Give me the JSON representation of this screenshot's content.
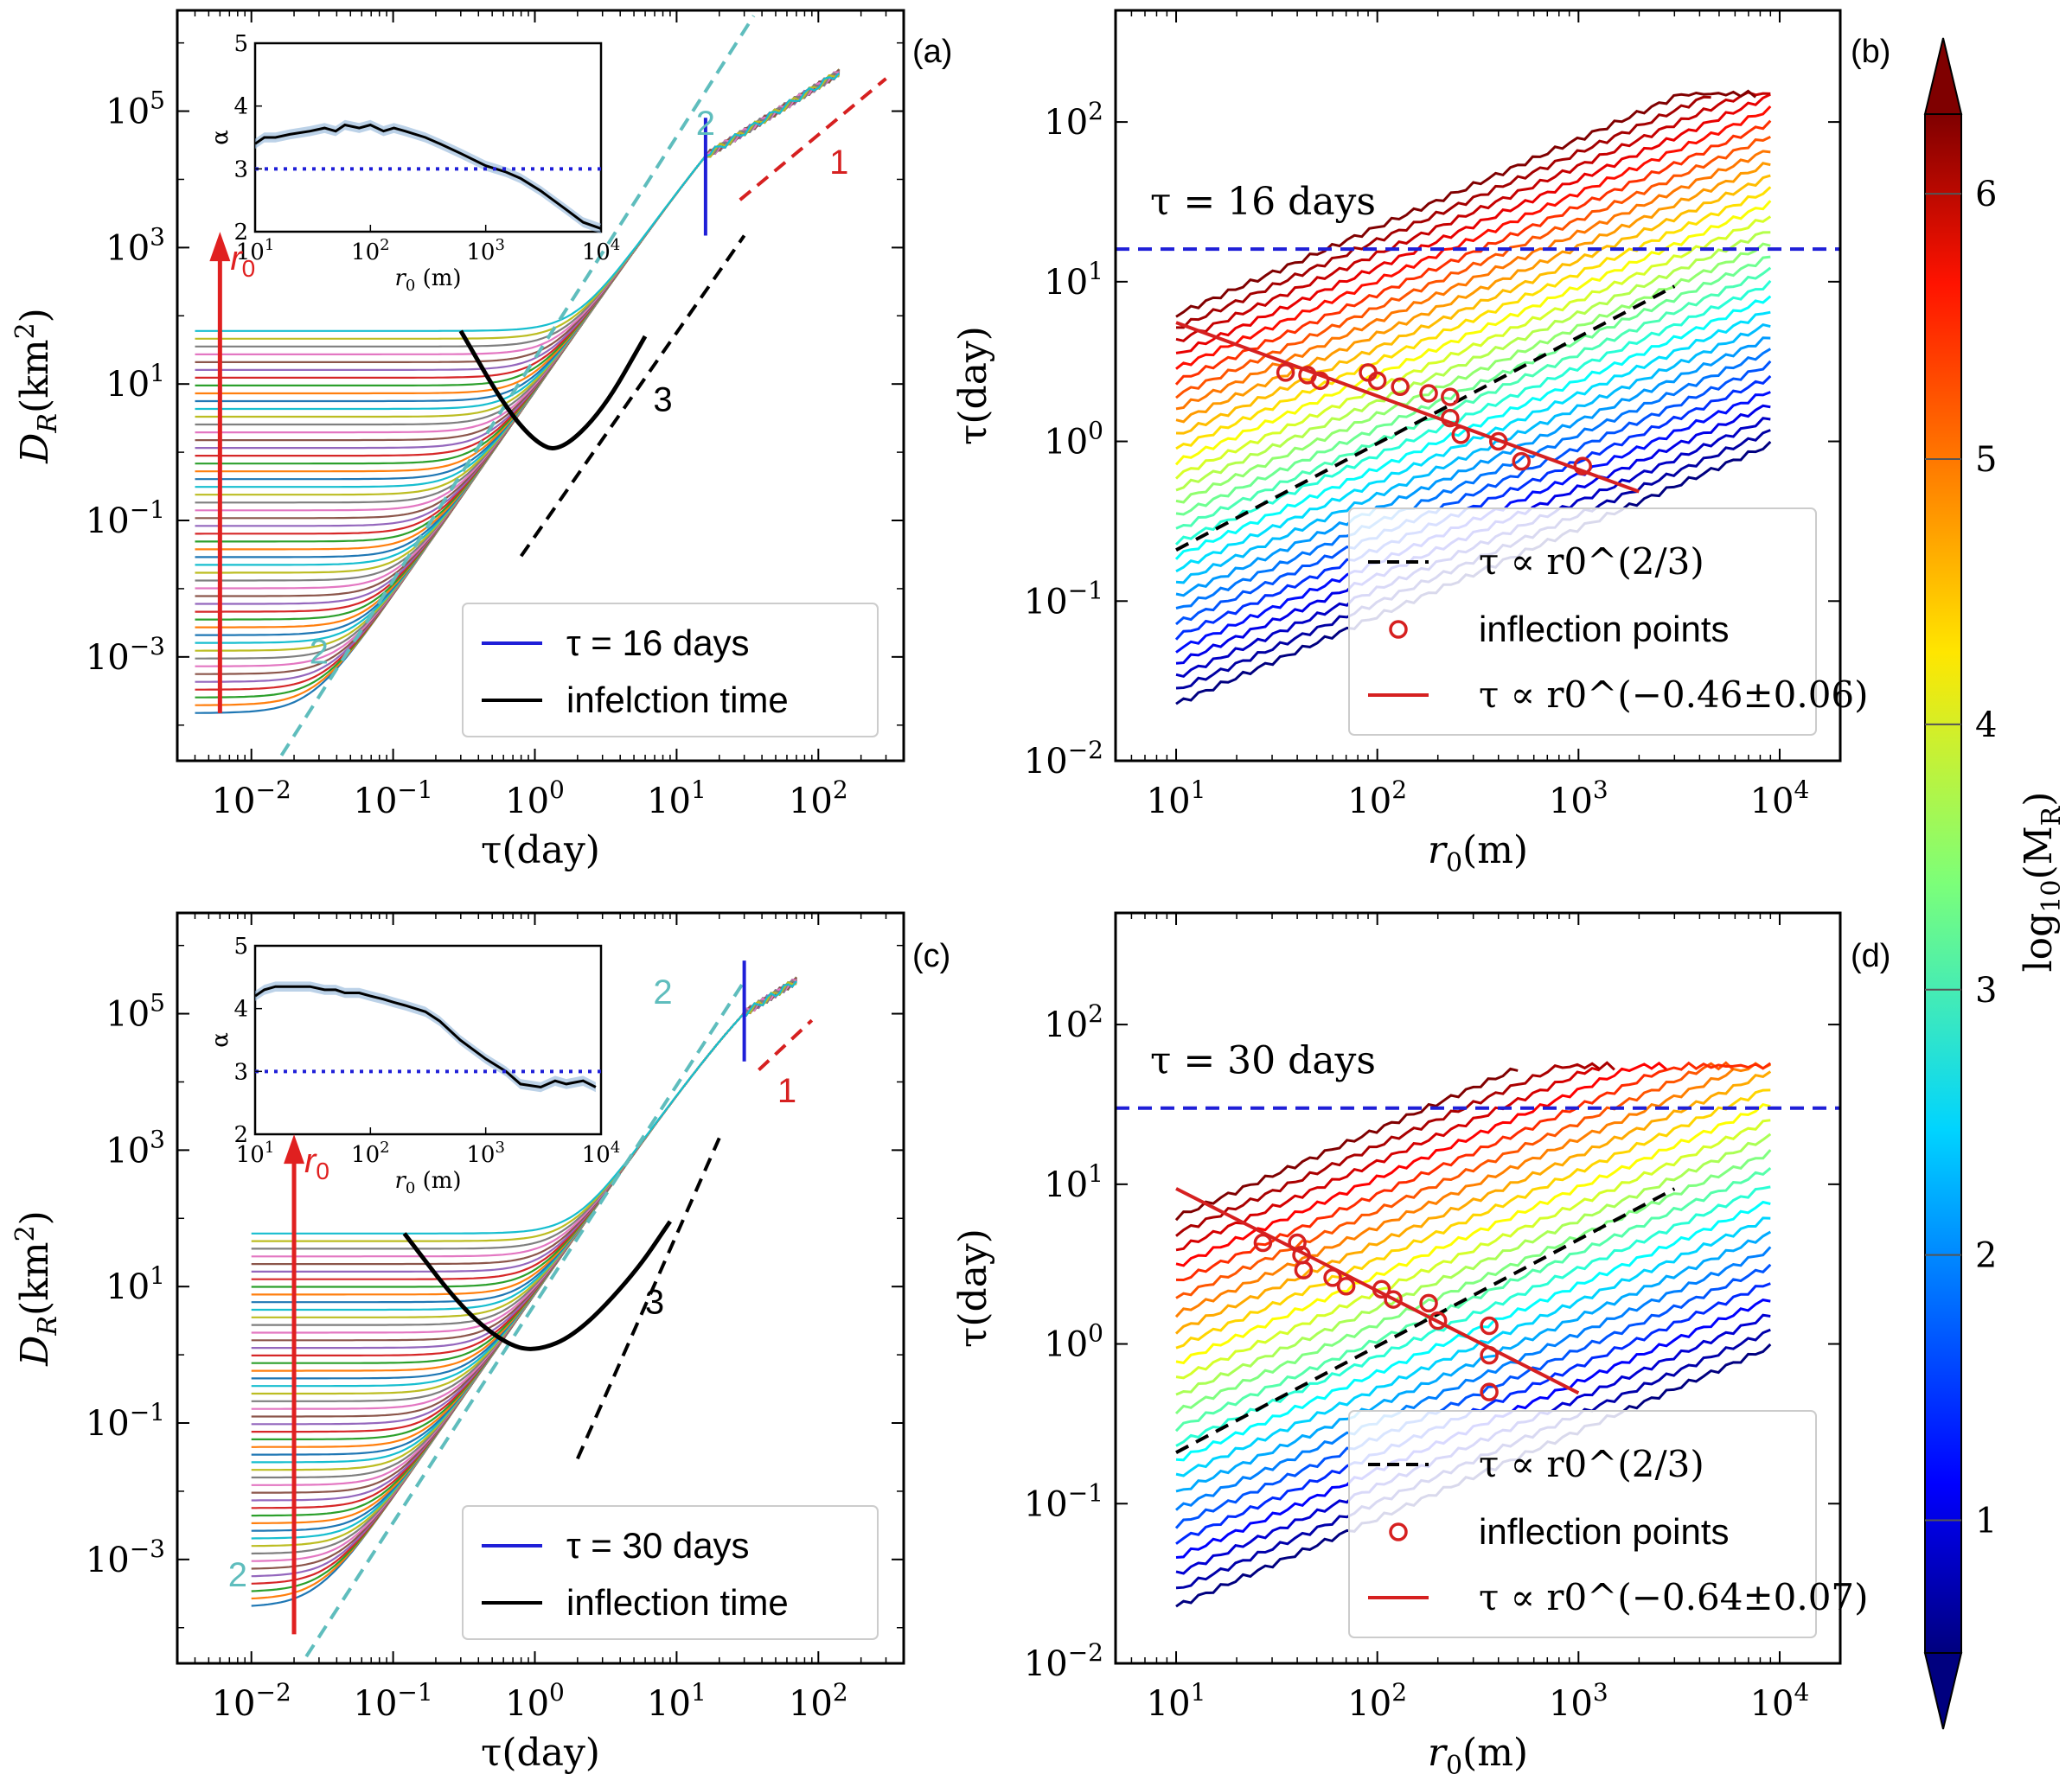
{
  "chart_data": [
    {
      "panel": "(a)",
      "type": "line",
      "xlabel": "τ(day)",
      "ylabel": "D_R(km²)",
      "xscale": "log",
      "yscale": "log",
      "xlim": [
        0.003,
        400
      ],
      "ylim": [
        3e-05,
        3000000
      ],
      "xticks": [
        "10^-2",
        "10^-1",
        "10^0",
        "10^1",
        "10^2"
      ],
      "yticks": [
        "10^-3",
        "10^-1",
        "10^1",
        "10^3",
        "10^5"
      ],
      "family": {
        "n_curves": 50,
        "r0_min_m": 10,
        "r0_max_m": 10000,
        "tau_start": 0.004,
        "tau_end": 140,
        "plateau_min": 0.00015,
        "plateau_max": 60,
        "ballistic_coeff": 0.008,
        "richardson_coeff": 8,
        "scale_dependent_coeff": 7000,
        "tau_change": 16
      },
      "tau_line": {
        "tau": 16,
        "D_low": 1500,
        "D_high": 80000,
        "color": "#1f1fd8"
      },
      "inflection_curve": {
        "points": [
          [
            0.3,
            60
          ],
          [
            0.6,
            5
          ],
          [
            1.0,
            1.4
          ],
          [
            1.5,
            1.0
          ],
          [
            3,
            4
          ],
          [
            6,
            50
          ]
        ],
        "color": "#000000"
      },
      "guides": [
        {
          "label": "2",
          "slope": 2,
          "points": [
            [
              0.011,
              1e-05
            ],
            [
              35,
              2500000
            ]
          ],
          "color": "#5fbdbd",
          "label_point": [
            0.03,
            0.0008
          ]
        },
        {
          "label": "2",
          "slope": 2,
          "points": [
            [
              0.9,
              1500
            ],
            [
              35,
              2500000
            ]
          ],
          "color": "#5fbdbd",
          "label_point": [
            16,
            45000
          ],
          "label_only": true
        },
        {
          "label": "3",
          "slope": 3,
          "points": [
            [
              0.8,
              0.03
            ],
            [
              30,
              1500
            ]
          ],
          "color": "#000000",
          "label_point": [
            8,
            4
          ]
        },
        {
          "label": "1",
          "slope": 1,
          "points": [
            [
              28,
              5000
            ],
            [
              300,
              300000
            ]
          ],
          "color": "#d62020",
          "label_point": [
            140,
            12000
          ]
        }
      ],
      "annotation_arrow": {
        "label": "r0",
        "tau": 0.006,
        "D_from": 0.00015,
        "D_to": 1200,
        "color": "#e02020"
      },
      "legend": {
        "position": "lower-right",
        "entries": [
          {
            "label": "τ = 16 days",
            "color": "#1f1fd8"
          },
          {
            "label": "infelction time",
            "color": "#000000"
          }
        ]
      },
      "inset": {
        "xlabel": "r0 (m)",
        "ylabel": "α",
        "xlim": [
          10,
          10000
        ],
        "ylim": [
          2,
          5
        ],
        "xticks": [
          "10^1",
          "10^2",
          "10^3",
          "10^4"
        ],
        "yticks": [
          "2",
          "3",
          "4",
          "5"
        ],
        "x": [
          10,
          12,
          15,
          20,
          30,
          40,
          50,
          60,
          80,
          100,
          130,
          160,
          200,
          300,
          400,
          600,
          1000,
          1500,
          2000,
          3000,
          5000,
          7000,
          10000
        ],
        "y": [
          3.4,
          3.5,
          3.5,
          3.55,
          3.6,
          3.65,
          3.6,
          3.7,
          3.65,
          3.7,
          3.6,
          3.65,
          3.6,
          3.5,
          3.4,
          3.25,
          3.05,
          2.95,
          2.85,
          2.65,
          2.35,
          2.15,
          2.05
        ],
        "hline": 3
      }
    },
    {
      "panel": "(b)",
      "type": "line",
      "xlabel": "r0(m)",
      "ylabel": "τ(day)",
      "xscale": "log",
      "yscale": "log",
      "xlim": [
        5,
        20000
      ],
      "ylim": [
        0.01,
        500
      ],
      "xticks": [
        "10^1",
        "10^2",
        "10^3",
        "10^4"
      ],
      "yticks": [
        "10^-2",
        "10^-1",
        "10^0",
        "10^1",
        "10^2"
      ],
      "iso_mass": {
        "n_curves": 30,
        "r0_min_m": 10,
        "r0_max_m": 9000,
        "logM_min": 0.5,
        "logM_max": 6.3,
        "tau_cap": 150
      },
      "hline": {
        "value": 16,
        "label": "τ = 16 days",
        "color": "#1f1fd8"
      },
      "fit_line": {
        "exponent": -0.46,
        "error": 0.06,
        "amplitude": 16,
        "x_range": [
          10,
          2000
        ],
        "color": "#d62020"
      },
      "ref_line": {
        "exponent": 0.6667,
        "amplitude": 0.1,
        "x_range": [
          10,
          3000
        ],
        "color": "#000000"
      },
      "inflection_points": [
        [
          35,
          2.7
        ],
        [
          45,
          2.6
        ],
        [
          52,
          2.4
        ],
        [
          90,
          2.7
        ],
        [
          100,
          2.4
        ],
        [
          130,
          2.2
        ],
        [
          180,
          2.0
        ],
        [
          230,
          1.9
        ],
        [
          230,
          1.4
        ],
        [
          260,
          1.1
        ],
        [
          400,
          1.0
        ],
        [
          520,
          0.75
        ],
        [
          1050,
          0.7
        ]
      ],
      "legend": {
        "position": "lower-right",
        "entries": [
          {
            "label": "τ ∝ r0^(2/3)",
            "color": "#000000"
          },
          {
            "label": "inflection points",
            "color": "#d62020"
          },
          {
            "label": "τ ∝ r0^(−0.46±0.06)",
            "color": "#d62020"
          }
        ]
      }
    },
    {
      "panel": "(c)",
      "type": "line",
      "xlabel": "τ(day)",
      "ylabel": "D_R(km²)",
      "xscale": "log",
      "yscale": "log",
      "xlim": [
        0.003,
        400
      ],
      "ylim": [
        3e-05,
        3000000
      ],
      "xticks": [
        "10^-2",
        "10^-1",
        "10^0",
        "10^1",
        "10^2"
      ],
      "yticks": [
        "10^-3",
        "10^-1",
        "10^1",
        "10^3",
        "10^5"
      ],
      "family": {
        "n_curves": 50,
        "r0_min_m": 10,
        "r0_max_m": 10000,
        "tau_start": 0.01,
        "tau_end": 70,
        "plateau_min": 0.0002,
        "plateau_max": 60,
        "ballistic_coeff": 0.008,
        "richardson_coeff": 8,
        "scale_dependent_coeff": 7000,
        "tau_change": 30
      },
      "tau_line": {
        "tau": 30,
        "D_low": 20000,
        "D_high": 600000,
        "color": "#1f1fd8"
      },
      "inflection_curve": {
        "points": [
          [
            0.12,
            60
          ],
          [
            0.3,
            5
          ],
          [
            0.6,
            1.5
          ],
          [
            1.0,
            1.1
          ],
          [
            2,
            2
          ],
          [
            5,
            15
          ],
          [
            9,
            90
          ]
        ],
        "color": "#000000"
      },
      "guides": [
        {
          "label": "2",
          "slope": 2,
          "points": [
            [
              0.02,
              2e-05
            ],
            [
              30,
              300000
            ]
          ],
          "color": "#5fbdbd",
          "label_point": [
            0.008,
            0.0004
          ]
        },
        {
          "label": "2",
          "slope": 2,
          "points": [
            [
              0.6,
              500
            ],
            [
              30,
              300000
            ]
          ],
          "color": "#5fbdbd",
          "label_point": [
            8,
            140000
          ],
          "label_only": true
        },
        {
          "label": "3",
          "slope": 3,
          "points": [
            [
              2,
              0.03
            ],
            [
              20,
              1500
            ]
          ],
          "color": "#000000",
          "label_point": [
            7,
            4
          ]
        },
        {
          "label": "1",
          "slope": 1,
          "points": [
            [
              38,
              15000
            ],
            [
              90,
              80000
            ]
          ],
          "color": "#d62020",
          "label_point": [
            60,
            5000
          ]
        }
      ],
      "annotation_arrow": {
        "label": "r0",
        "tau": 0.02,
        "D_from": 8e-05,
        "D_to": 1200,
        "color": "#e02020"
      },
      "legend": {
        "position": "lower-right",
        "entries": [
          {
            "label": "τ = 30 days",
            "color": "#1f1fd8"
          },
          {
            "label": "inflection time",
            "color": "#000000"
          }
        ]
      },
      "inset": {
        "xlabel": "r0 (m)",
        "ylabel": "α",
        "xlim": [
          10,
          10000
        ],
        "ylim": [
          2,
          5
        ],
        "xticks": [
          "10^1",
          "10^2",
          "10^3",
          "10^4"
        ],
        "yticks": [
          "2",
          "3",
          "4",
          "5"
        ],
        "x": [
          10,
          12,
          15,
          20,
          30,
          40,
          50,
          60,
          80,
          100,
          130,
          160,
          200,
          300,
          400,
          600,
          1000,
          1500,
          2000,
          3000,
          4000,
          5000,
          7000,
          9000
        ],
        "y": [
          4.2,
          4.3,
          4.35,
          4.35,
          4.35,
          4.3,
          4.3,
          4.25,
          4.25,
          4.2,
          4.15,
          4.1,
          4.05,
          3.95,
          3.8,
          3.5,
          3.2,
          3.0,
          2.8,
          2.75,
          2.85,
          2.8,
          2.85,
          2.75
        ],
        "hline": 3
      }
    },
    {
      "panel": "(d)",
      "type": "line",
      "xlabel": "r0(m)",
      "ylabel": "τ(day)",
      "xscale": "log",
      "yscale": "log",
      "xlim": [
        5,
        20000
      ],
      "ylim": [
        0.01,
        500
      ],
      "xticks": [
        "10^1",
        "10^2",
        "10^3",
        "10^4"
      ],
      "yticks": [
        "10^-2",
        "10^-1",
        "10^0",
        "10^1",
        "10^2"
      ],
      "iso_mass": {
        "n_curves": 25,
        "r0_min_m": 10,
        "r0_max_m": 9000,
        "logM_min": 0.5,
        "logM_max": 6.3,
        "tau_cap": 55
      },
      "hline": {
        "value": 30,
        "label": "τ = 30 days",
        "color": "#1f1fd8"
      },
      "fit_line": {
        "exponent": -0.64,
        "error": 0.07,
        "amplitude": 41,
        "x_range": [
          10,
          1000
        ],
        "color": "#d62020"
      },
      "ref_line": {
        "exponent": 0.6667,
        "amplitude": 0.1,
        "x_range": [
          10,
          3000
        ],
        "color": "#000000"
      },
      "inflection_points": [
        [
          27,
          4.3
        ],
        [
          40,
          4.3
        ],
        [
          42,
          3.6
        ],
        [
          43,
          2.9
        ],
        [
          60,
          2.6
        ],
        [
          70,
          2.3
        ],
        [
          105,
          2.2
        ],
        [
          120,
          1.9
        ],
        [
          180,
          1.8
        ],
        [
          200,
          1.4
        ],
        [
          360,
          1.3
        ],
        [
          360,
          0.85
        ],
        [
          360,
          0.5
        ]
      ],
      "legend": {
        "position": "lower-right",
        "entries": [
          {
            "label": "τ ∝ r0^(2/3)",
            "color": "#000000"
          },
          {
            "label": "inflection points",
            "color": "#d62020"
          },
          {
            "label": "τ ∝ r0^(−0.64±0.07)",
            "color": "#d62020"
          }
        ]
      }
    },
    {
      "panel": "colorbar",
      "type": "colorbar",
      "label": "log10(M_R)",
      "range": [
        0.5,
        6.3
      ],
      "ticks": [
        "1",
        "2",
        "3",
        "4",
        "5",
        "6"
      ],
      "colormap": "jet"
    }
  ]
}
